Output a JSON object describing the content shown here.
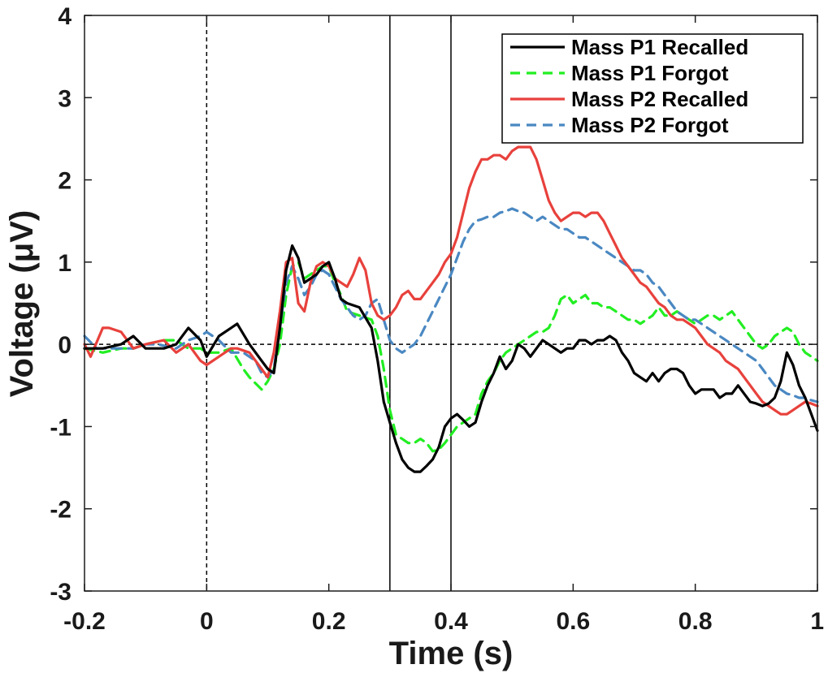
{
  "chart_data": {
    "type": "line",
    "xlabel": "Time (s)",
    "ylabel": "Voltage (μV)",
    "xlim": [
      -0.2,
      1.0
    ],
    "ylim": [
      -3,
      4
    ],
    "xticks": [
      -0.2,
      0,
      0.2,
      0.4,
      0.6,
      0.8,
      1
    ],
    "xtick_labels": [
      "-0.2",
      "0",
      "0.2",
      "0.4",
      "0.6",
      "0.8",
      "1"
    ],
    "yticks": [
      -3,
      -2,
      -1,
      0,
      1,
      2,
      3,
      4
    ],
    "ytick_labels": [
      "-3",
      "-2",
      "-1",
      "0",
      "1",
      "2",
      "3",
      "4"
    ],
    "grid": false,
    "legend_position": "top-right",
    "reference_lines": [
      {
        "orientation": "horizontal",
        "value": 0,
        "style": "dashed"
      },
      {
        "orientation": "vertical",
        "value": 0,
        "style": "dashed"
      },
      {
        "orientation": "vertical",
        "value": 0.3,
        "style": "solid"
      },
      {
        "orientation": "vertical",
        "value": 0.4,
        "style": "solid"
      }
    ],
    "series": [
      {
        "name": "Mass P1 Recalled",
        "color": "#000000",
        "dash": "solid",
        "x": [
          -0.2,
          -0.17,
          -0.14,
          -0.12,
          -0.1,
          -0.07,
          -0.05,
          -0.03,
          -0.01,
          0.0,
          0.02,
          0.04,
          0.05,
          0.07,
          0.09,
          0.1,
          0.11,
          0.12,
          0.13,
          0.14,
          0.15,
          0.16,
          0.17,
          0.18,
          0.19,
          0.2,
          0.21,
          0.22,
          0.23,
          0.25,
          0.27,
          0.28,
          0.29,
          0.3,
          0.31,
          0.32,
          0.33,
          0.34,
          0.35,
          0.36,
          0.37,
          0.38,
          0.39,
          0.4,
          0.41,
          0.42,
          0.43,
          0.44,
          0.45,
          0.46,
          0.47,
          0.48,
          0.49,
          0.5,
          0.51,
          0.52,
          0.53,
          0.54,
          0.55,
          0.56,
          0.57,
          0.58,
          0.59,
          0.6,
          0.61,
          0.62,
          0.63,
          0.64,
          0.65,
          0.66,
          0.67,
          0.68,
          0.69,
          0.7,
          0.71,
          0.72,
          0.73,
          0.74,
          0.75,
          0.76,
          0.77,
          0.78,
          0.79,
          0.8,
          0.81,
          0.82,
          0.83,
          0.84,
          0.85,
          0.86,
          0.87,
          0.88,
          0.89,
          0.9,
          0.91,
          0.92,
          0.93,
          0.94,
          0.95,
          0.96,
          0.97,
          0.98,
          0.99,
          1.0
        ],
        "y": [
          -0.05,
          -0.05,
          0.0,
          0.1,
          -0.05,
          -0.05,
          0.0,
          0.2,
          0.05,
          -0.15,
          0.1,
          0.2,
          0.25,
          0.0,
          -0.2,
          -0.3,
          -0.35,
          0.2,
          0.9,
          1.2,
          1.05,
          0.75,
          0.8,
          0.85,
          0.95,
          1.0,
          0.8,
          0.55,
          0.5,
          0.45,
          0.2,
          -0.2,
          -0.7,
          -0.95,
          -1.2,
          -1.4,
          -1.5,
          -1.55,
          -1.55,
          -1.48,
          -1.4,
          -1.25,
          -1.0,
          -0.9,
          -0.85,
          -0.92,
          -1.0,
          -0.95,
          -0.7,
          -0.5,
          -0.35,
          -0.15,
          -0.3,
          -0.2,
          0.0,
          -0.05,
          -0.15,
          -0.05,
          0.05,
          0.0,
          -0.05,
          -0.1,
          -0.05,
          -0.05,
          0.05,
          0.05,
          0.0,
          0.05,
          0.05,
          0.1,
          0.05,
          -0.1,
          -0.2,
          -0.35,
          -0.4,
          -0.45,
          -0.35,
          -0.45,
          -0.35,
          -0.3,
          -0.3,
          -0.35,
          -0.5,
          -0.6,
          -0.55,
          -0.55,
          -0.55,
          -0.65,
          -0.6,
          -0.6,
          -0.5,
          -0.6,
          -0.7,
          -0.72,
          -0.75,
          -0.72,
          -0.65,
          -0.45,
          -0.1,
          -0.25,
          -0.5,
          -0.65,
          -0.85,
          -1.05
        ]
      },
      {
        "name": "Mass P1 Forgot",
        "color": "#22ee22",
        "dash": "dashed",
        "x": [
          -0.2,
          -0.17,
          -0.14,
          -0.12,
          -0.1,
          -0.07,
          -0.05,
          -0.03,
          -0.01,
          0.0,
          0.02,
          0.04,
          0.06,
          0.07,
          0.09,
          0.1,
          0.11,
          0.12,
          0.13,
          0.14,
          0.15,
          0.16,
          0.17,
          0.18,
          0.19,
          0.2,
          0.21,
          0.22,
          0.23,
          0.25,
          0.27,
          0.28,
          0.29,
          0.3,
          0.31,
          0.32,
          0.33,
          0.34,
          0.35,
          0.36,
          0.37,
          0.38,
          0.39,
          0.4,
          0.41,
          0.42,
          0.43,
          0.44,
          0.45,
          0.46,
          0.47,
          0.48,
          0.49,
          0.5,
          0.51,
          0.52,
          0.53,
          0.54,
          0.55,
          0.56,
          0.57,
          0.58,
          0.59,
          0.6,
          0.61,
          0.62,
          0.63,
          0.64,
          0.65,
          0.66,
          0.67,
          0.68,
          0.69,
          0.7,
          0.71,
          0.72,
          0.73,
          0.74,
          0.75,
          0.76,
          0.77,
          0.78,
          0.79,
          0.8,
          0.81,
          0.82,
          0.83,
          0.84,
          0.85,
          0.86,
          0.87,
          0.88,
          0.89,
          0.9,
          0.91,
          0.92,
          0.93,
          0.94,
          0.95,
          0.96,
          0.97,
          0.98,
          0.99,
          1.0
        ],
        "y": [
          -0.05,
          -0.1,
          -0.05,
          -0.05,
          0.0,
          0.05,
          0.05,
          -0.05,
          -0.05,
          -0.1,
          -0.1,
          -0.05,
          -0.3,
          -0.4,
          -0.55,
          -0.45,
          -0.3,
          0.0,
          0.6,
          0.95,
          1.0,
          0.8,
          0.85,
          0.9,
          0.95,
          0.95,
          0.75,
          0.6,
          0.4,
          0.35,
          0.3,
          0.1,
          -0.3,
          -0.8,
          -1.1,
          -1.15,
          -1.2,
          -1.2,
          -1.15,
          -1.2,
          -1.3,
          -1.28,
          -1.2,
          -1.1,
          -1.0,
          -0.95,
          -0.9,
          -0.85,
          -0.6,
          -0.45,
          -0.35,
          -0.2,
          -0.1,
          -0.05,
          0.0,
          0.05,
          0.1,
          0.15,
          0.15,
          0.2,
          0.35,
          0.55,
          0.6,
          0.5,
          0.55,
          0.6,
          0.5,
          0.5,
          0.45,
          0.45,
          0.4,
          0.35,
          0.3,
          0.3,
          0.25,
          0.3,
          0.35,
          0.45,
          0.35,
          0.35,
          0.4,
          0.35,
          0.3,
          0.25,
          0.3,
          0.35,
          0.35,
          0.3,
          0.35,
          0.4,
          0.3,
          0.2,
          0.1,
          0.0,
          -0.05,
          0.0,
          0.1,
          0.15,
          0.2,
          0.15,
          0.0,
          -0.1,
          -0.15,
          -0.2
        ]
      },
      {
        "name": "Mass P2 Recalled",
        "color": "#e8413c",
        "dash": "solid",
        "x": [
          -0.2,
          -0.19,
          -0.17,
          -0.16,
          -0.14,
          -0.12,
          -0.1,
          -0.07,
          -0.05,
          -0.03,
          -0.01,
          0.0,
          0.02,
          0.04,
          0.05,
          0.07,
          0.09,
          0.1,
          0.11,
          0.12,
          0.13,
          0.14,
          0.15,
          0.16,
          0.17,
          0.18,
          0.19,
          0.2,
          0.21,
          0.22,
          0.23,
          0.24,
          0.25,
          0.26,
          0.27,
          0.28,
          0.29,
          0.3,
          0.31,
          0.32,
          0.33,
          0.34,
          0.35,
          0.36,
          0.37,
          0.38,
          0.39,
          0.4,
          0.41,
          0.42,
          0.43,
          0.44,
          0.45,
          0.46,
          0.47,
          0.48,
          0.49,
          0.5,
          0.51,
          0.52,
          0.53,
          0.54,
          0.55,
          0.56,
          0.57,
          0.58,
          0.59,
          0.6,
          0.61,
          0.62,
          0.63,
          0.64,
          0.65,
          0.66,
          0.67,
          0.68,
          0.69,
          0.7,
          0.71,
          0.72,
          0.73,
          0.74,
          0.75,
          0.76,
          0.77,
          0.78,
          0.79,
          0.8,
          0.81,
          0.82,
          0.83,
          0.84,
          0.85,
          0.86,
          0.87,
          0.88,
          0.89,
          0.9,
          0.91,
          0.92,
          0.93,
          0.94,
          0.95,
          0.96,
          0.97,
          0.98,
          0.99,
          1.0
        ],
        "y": [
          0.0,
          -0.15,
          0.2,
          0.2,
          0.15,
          -0.05,
          0.0,
          0.05,
          -0.1,
          0.0,
          -0.2,
          -0.25,
          -0.15,
          -0.05,
          -0.05,
          -0.1,
          -0.3,
          -0.4,
          -0.1,
          0.4,
          1.0,
          1.05,
          0.5,
          0.4,
          0.75,
          0.95,
          1.0,
          0.95,
          0.8,
          0.75,
          0.7,
          0.85,
          1.05,
          0.9,
          0.5,
          0.35,
          0.3,
          0.35,
          0.45,
          0.6,
          0.65,
          0.55,
          0.55,
          0.65,
          0.75,
          0.85,
          1.0,
          1.1,
          1.3,
          1.6,
          1.9,
          2.1,
          2.25,
          2.25,
          2.3,
          2.3,
          2.25,
          2.35,
          2.4,
          2.4,
          2.4,
          2.25,
          2.0,
          1.75,
          1.6,
          1.5,
          1.55,
          1.6,
          1.6,
          1.55,
          1.6,
          1.6,
          1.5,
          1.35,
          1.2,
          1.05,
          0.95,
          0.85,
          0.75,
          0.7,
          0.6,
          0.5,
          0.45,
          0.35,
          0.3,
          0.3,
          0.25,
          0.2,
          0.1,
          0.0,
          -0.05,
          -0.1,
          -0.2,
          -0.25,
          -0.3,
          -0.4,
          -0.5,
          -0.6,
          -0.7,
          -0.75,
          -0.8,
          -0.85,
          -0.85,
          -0.8,
          -0.75,
          -0.7,
          -0.72,
          -0.75
        ]
      },
      {
        "name": "Mass P2 Forgot",
        "color": "#4a88c2",
        "dash": "dashed",
        "x": [
          -0.2,
          -0.18,
          -0.15,
          -0.12,
          -0.1,
          -0.08,
          -0.05,
          -0.03,
          -0.01,
          0.0,
          0.02,
          0.04,
          0.06,
          0.08,
          0.09,
          0.1,
          0.11,
          0.12,
          0.13,
          0.14,
          0.15,
          0.16,
          0.17,
          0.18,
          0.19,
          0.2,
          0.21,
          0.22,
          0.23,
          0.24,
          0.25,
          0.26,
          0.27,
          0.28,
          0.29,
          0.3,
          0.31,
          0.32,
          0.33,
          0.34,
          0.35,
          0.36,
          0.37,
          0.38,
          0.39,
          0.4,
          0.41,
          0.42,
          0.43,
          0.44,
          0.45,
          0.46,
          0.47,
          0.48,
          0.49,
          0.5,
          0.51,
          0.52,
          0.53,
          0.54,
          0.55,
          0.56,
          0.57,
          0.58,
          0.59,
          0.6,
          0.61,
          0.62,
          0.63,
          0.64,
          0.65,
          0.66,
          0.67,
          0.68,
          0.69,
          0.7,
          0.71,
          0.72,
          0.73,
          0.74,
          0.75,
          0.76,
          0.77,
          0.78,
          0.79,
          0.8,
          0.81,
          0.82,
          0.83,
          0.84,
          0.85,
          0.86,
          0.87,
          0.88,
          0.89,
          0.9,
          0.91,
          0.92,
          0.93,
          0.94,
          0.95,
          0.96,
          0.97,
          0.98,
          0.99,
          1.0
        ],
        "y": [
          0.1,
          -0.05,
          -0.05,
          -0.05,
          0.0,
          0.0,
          -0.05,
          0.05,
          0.1,
          0.15,
          0.05,
          -0.1,
          -0.1,
          -0.2,
          -0.35,
          -0.4,
          -0.3,
          0.2,
          0.75,
          0.95,
          0.8,
          0.6,
          0.7,
          0.85,
          0.9,
          0.85,
          0.7,
          0.55,
          0.45,
          0.35,
          0.3,
          0.35,
          0.5,
          0.55,
          0.3,
          0.05,
          -0.05,
          -0.1,
          -0.05,
          0.0,
          0.1,
          0.25,
          0.4,
          0.55,
          0.7,
          0.85,
          1.05,
          1.25,
          1.4,
          1.5,
          1.52,
          1.55,
          1.55,
          1.6,
          1.62,
          1.65,
          1.62,
          1.6,
          1.55,
          1.5,
          1.55,
          1.5,
          1.45,
          1.4,
          1.4,
          1.35,
          1.3,
          1.3,
          1.25,
          1.2,
          1.15,
          1.1,
          1.05,
          1.0,
          0.95,
          0.9,
          0.9,
          0.85,
          0.75,
          0.7,
          0.6,
          0.5,
          0.4,
          0.35,
          0.3,
          0.3,
          0.25,
          0.2,
          0.15,
          0.1,
          0.05,
          0.0,
          -0.05,
          -0.1,
          -0.15,
          -0.2,
          -0.3,
          -0.4,
          -0.5,
          -0.55,
          -0.6,
          -0.62,
          -0.65,
          -0.65,
          -0.68,
          -0.7
        ]
      }
    ]
  }
}
